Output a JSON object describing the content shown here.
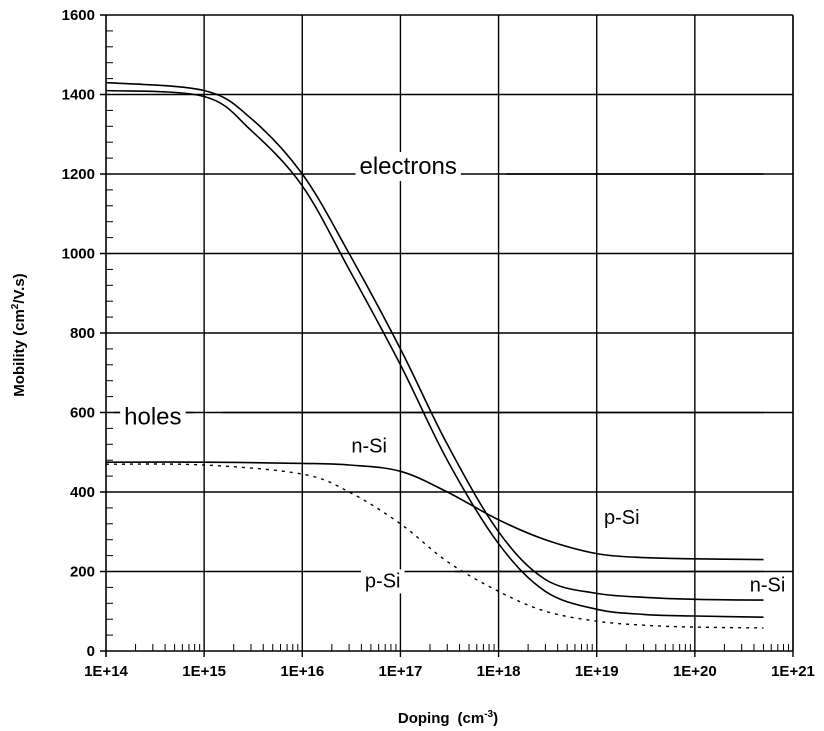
{
  "chart_data": {
    "type": "line",
    "title": "",
    "xlabel": "Doping",
    "xlabel_unit": "(cm",
    "xlabel_exp": "-3",
    "xlabel_close": ")",
    "ylabel": "Mobility (cm",
    "ylabel_exp": "2",
    "ylabel_tail": "/V.s)",
    "x_scale": "log",
    "xlim": [
      100000000000000.0,
      1e+21
    ],
    "ylim": [
      0,
      1600
    ],
    "grid": true,
    "x_ticks": [
      "1E+14",
      "1E+15",
      "1E+16",
      "1E+17",
      "1E+18",
      "1E+19",
      "1E+20",
      "1E+21"
    ],
    "y_ticks": [
      "0",
      "200",
      "400",
      "600",
      "800",
      "1000",
      "1200",
      "1400",
      "1600"
    ],
    "series": [
      {
        "group": "electrons",
        "style": "solid",
        "x": [
          100000000000000.0,
          1000000000000000.0,
          3000000000000000.0,
          1e+16,
          3e+16,
          1e+17,
          3e+17,
          1e+18,
          3e+18,
          1e+19,
          3e+19,
          1e+20,
          5e+20
        ],
        "y": [
          1430,
          1410,
          1340,
          1200,
          1000,
          760,
          520,
          300,
          180,
          145,
          135,
          130,
          128
        ]
      },
      {
        "group": "electrons",
        "style": "solid",
        "x": [
          100000000000000.0,
          1000000000000000.0,
          3000000000000000.0,
          1e+16,
          3e+16,
          1e+17,
          3e+17,
          1e+18,
          3e+18,
          1e+19,
          3e+19,
          1e+20,
          5e+20
        ],
        "y": [
          1410,
          1395,
          1310,
          1170,
          960,
          720,
          480,
          270,
          150,
          105,
          92,
          88,
          85
        ]
      },
      {
        "group": "holes",
        "style": "solid",
        "x": [
          100000000000000.0,
          1000000000000000.0,
          1e+16,
          3e+16,
          1e+17,
          3e+17,
          1e+18,
          3e+18,
          1e+19,
          3e+19,
          1e+20,
          5e+20
        ],
        "y": [
          475,
          475,
          472,
          468,
          452,
          400,
          330,
          280,
          245,
          235,
          232,
          230
        ]
      },
      {
        "group": "holes",
        "style": "dotted",
        "x": [
          100000000000000.0,
          1000000000000000.0,
          1e+16,
          3e+16,
          1e+17,
          3e+17,
          1e+18,
          3e+18,
          1e+19,
          3e+19,
          1e+20,
          5e+20
        ],
        "y": [
          470,
          468,
          445,
          400,
          320,
          225,
          150,
          100,
          75,
          65,
          60,
          58
        ]
      }
    ],
    "annotations": [
      {
        "text": "electrons",
        "x": 1.2e+17,
        "y": 1200
      },
      {
        "text": "holes",
        "x": 300000000000000.0,
        "y": 570
      },
      {
        "text": "n-Si",
        "x": 4.8e+16,
        "y": 500
      },
      {
        "text": "p-Si",
        "x": 1.8e+19,
        "y": 320
      },
      {
        "text": "p-Si",
        "x": 6.6e+16,
        "y": 160
      },
      {
        "text": "n-Si",
        "x": 5.5e+20,
        "y": 150
      }
    ]
  }
}
